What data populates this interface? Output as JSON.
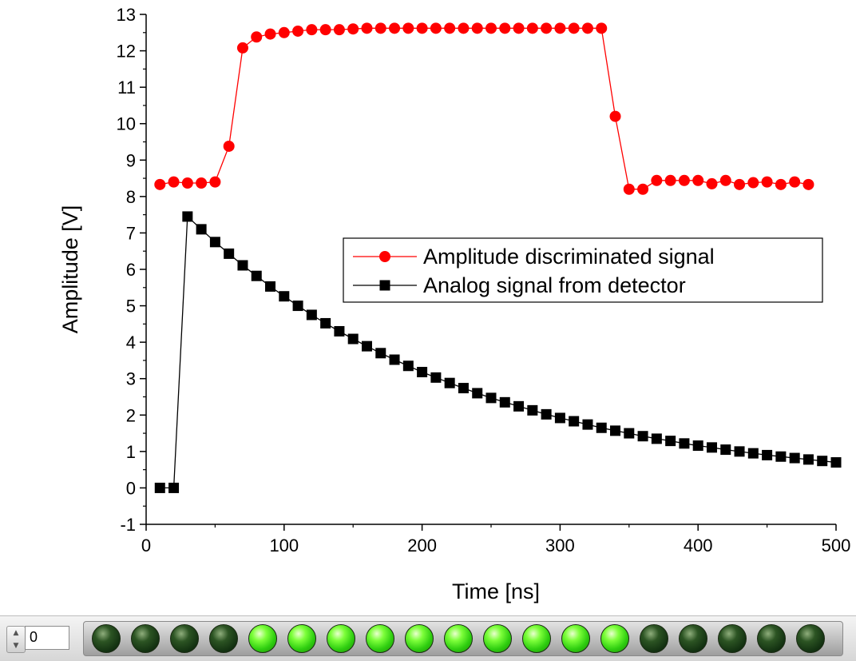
{
  "chart_data": {
    "type": "line",
    "title": "",
    "xlabel": "Time [ns]",
    "ylabel": "Amplitude [V]",
    "xlim": [
      0,
      500
    ],
    "ylim": [
      -1,
      13
    ],
    "x_ticks": [
      "0",
      "100",
      "200",
      "300",
      "400",
      "500"
    ],
    "y_ticks": [
      "-1",
      "0",
      "1",
      "2",
      "3",
      "4",
      "5",
      "6",
      "7",
      "8",
      "9",
      "10",
      "11",
      "12",
      "13"
    ],
    "grid": false,
    "legend_position": "center-right",
    "series": [
      {
        "name": "Amplitude discriminated signal",
        "color": "#ff0000",
        "marker": "circle",
        "x": [
          10,
          20,
          30,
          40,
          50,
          60,
          70,
          80,
          90,
          100,
          110,
          120,
          130,
          140,
          150,
          160,
          170,
          180,
          190,
          200,
          210,
          220,
          230,
          240,
          250,
          260,
          270,
          280,
          290,
          300,
          310,
          320,
          330,
          340,
          350,
          360,
          370,
          380,
          390,
          400,
          410,
          420,
          430,
          440,
          450,
          460,
          470,
          480
        ],
        "y": [
          8.33,
          8.4,
          8.37,
          8.37,
          8.4,
          9.38,
          12.08,
          12.38,
          12.46,
          12.5,
          12.54,
          12.58,
          12.58,
          12.58,
          12.6,
          12.62,
          12.62,
          12.62,
          12.62,
          12.62,
          12.62,
          12.62,
          12.62,
          12.62,
          12.62,
          12.62,
          12.62,
          12.62,
          12.62,
          12.62,
          12.62,
          12.62,
          12.62,
          10.2,
          8.2,
          8.2,
          8.44,
          8.44,
          8.44,
          8.44,
          8.35,
          8.44,
          8.33,
          8.38,
          8.4,
          8.33,
          8.4,
          8.33
        ]
      },
      {
        "name": "Analog signal from detector",
        "color": "#000000",
        "marker": "square",
        "x": [
          10,
          20,
          30,
          40,
          50,
          60,
          70,
          80,
          90,
          100,
          110,
          120,
          130,
          140,
          150,
          160,
          170,
          180,
          190,
          200,
          210,
          220,
          230,
          240,
          250,
          260,
          270,
          280,
          290,
          300,
          310,
          320,
          330,
          340,
          350,
          360,
          370,
          380,
          390,
          400,
          410,
          420,
          430,
          440,
          450,
          460,
          470,
          480,
          490,
          500
        ],
        "y": [
          0,
          0,
          7.45,
          7.1,
          6.75,
          6.43,
          6.11,
          5.82,
          5.53,
          5.26,
          5.0,
          4.75,
          4.52,
          4.3,
          4.09,
          3.89,
          3.7,
          3.52,
          3.35,
          3.18,
          3.03,
          2.88,
          2.74,
          2.6,
          2.47,
          2.35,
          2.24,
          2.13,
          2.02,
          1.92,
          1.83,
          1.74,
          1.65,
          1.57,
          1.5,
          1.42,
          1.35,
          1.29,
          1.22,
          1.16,
          1.11,
          1.05,
          1.0,
          0.95,
          0.9,
          0.86,
          0.82,
          0.78,
          0.74,
          0.7
        ]
      }
    ]
  },
  "led_panel": {
    "index_value": "0",
    "colors": {
      "on": "#55ee22",
      "off": "#1e3d18"
    },
    "leds": [
      false,
      false,
      false,
      false,
      true,
      true,
      true,
      true,
      true,
      true,
      true,
      true,
      true,
      true,
      false,
      false,
      false,
      false,
      false
    ]
  }
}
